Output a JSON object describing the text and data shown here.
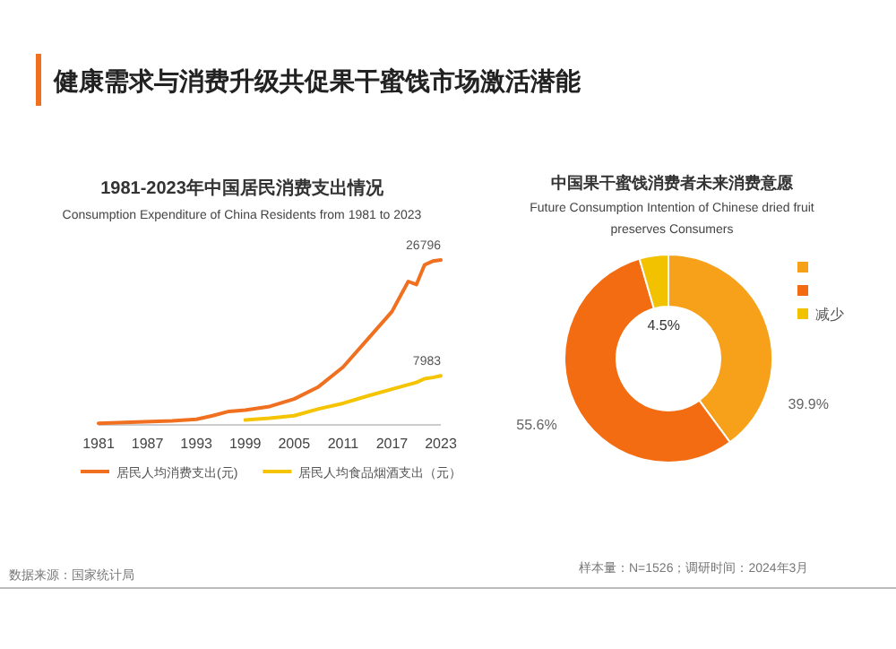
{
  "chart_data": [
    {
      "type": "other",
      "title": "健康需求与消费升级共促果干蜜饯市场激活潜能"
    },
    {
      "type": "line",
      "title": "1981-2023年中国居民消费支出情况",
      "subtitle": "Consumption Expenditure of China Residents from 1981 to 2023",
      "xlim": [
        1981,
        2023
      ],
      "xticks": [
        1981,
        1987,
        1993,
        1999,
        2005,
        2011,
        2017,
        2023
      ],
      "tick_labels": "x",
      "legend": "bottom",
      "marker": "none",
      "series": [
        {
          "name": "居民人均消费支出(元)",
          "color": "#f07020",
          "x": [
            1981,
            1985,
            1990,
            1993,
            1995,
            1997,
            1999,
            2002,
            2005,
            2008,
            2011,
            2014,
            2017,
            2019,
            2020,
            2021,
            2022,
            2023
          ],
          "values": [
            250,
            450,
            650,
            900,
            1500,
            2200,
            2400,
            3000,
            4200,
            6200,
            9400,
            13900,
            18400,
            23300,
            22800,
            26000,
            26600,
            26796
          ],
          "value_labels": [
            null,
            null,
            null,
            null,
            null,
            null,
            null,
            null,
            null,
            null,
            null,
            null,
            null,
            null,
            null,
            null,
            null,
            "26796"
          ]
        },
        {
          "name": "居民人均食品烟酒支出（元）",
          "color": "#f5c400",
          "x": [
            1999,
            2002,
            2005,
            2008,
            2011,
            2014,
            2017,
            2020,
            2021,
            2022,
            2023
          ],
          "values": [
            800,
            1100,
            1500,
            2600,
            3500,
            4700,
            5800,
            6900,
            7500,
            7700,
            7983
          ],
          "value_labels": [
            null,
            null,
            null,
            null,
            null,
            null,
            null,
            null,
            null,
            null,
            "7983"
          ]
        }
      ],
      "annotations": [
        "数据来源：国家统计局"
      ]
    },
    {
      "type": "donut",
      "title": "中国果干蜜饯消费者未来消费意愿",
      "subtitle": "Future Consumption Intention of Chinese dried fruit preserves Consumers",
      "categories": [
        null,
        null,
        "减少"
      ],
      "values": [
        39.9,
        55.6,
        4.5
      ],
      "colors": [
        "#f7a11a",
        "#f36c11",
        "#f2c200"
      ],
      "value_labels": [
        "39.9%",
        "55.6%",
        "4.5%"
      ],
      "legend": "right",
      "annotations": [
        "样本量：N=1526；调研时间：2024年3月"
      ]
    }
  ]
}
